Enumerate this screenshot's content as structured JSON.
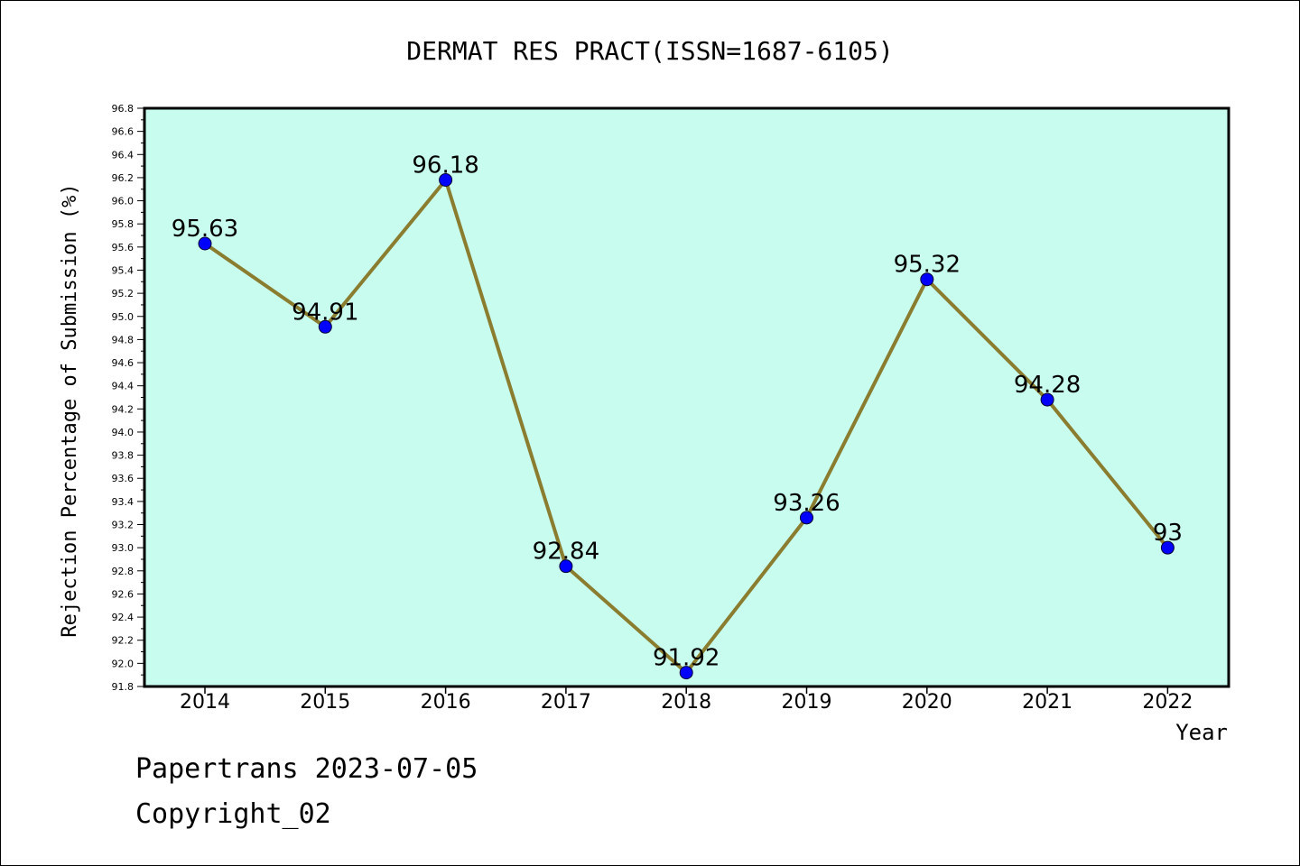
{
  "chart_data": {
    "type": "line",
    "title": "DERMAT RES PRACT(ISSN=1687-6105)",
    "xlabel": "Year",
    "ylabel": "Rejection Percentage of Submission (%)",
    "categories": [
      "2014",
      "2015",
      "2016",
      "2017",
      "2018",
      "2019",
      "2020",
      "2021",
      "2022"
    ],
    "values": [
      95.63,
      94.91,
      96.18,
      92.84,
      91.92,
      93.26,
      95.32,
      94.28,
      93
    ],
    "data_labels": [
      "95.63",
      "94.91",
      "96.18",
      "92.84",
      "91.92",
      "93.26",
      "95.32",
      "94.28",
      "93"
    ],
    "ylim": [
      91.8,
      96.8
    ],
    "yticks": [
      "91.8",
      "92.0",
      "92.2",
      "92.4",
      "92.6",
      "92.8",
      "93.0",
      "93.2",
      "93.4",
      "93.6",
      "93.8",
      "94.0",
      "94.2",
      "94.4",
      "94.6",
      "94.8",
      "95.0",
      "95.2",
      "95.4",
      "95.6",
      "95.8",
      "96.0",
      "96.2",
      "96.4",
      "96.6",
      "96.8"
    ],
    "plot_background": "#c8fcee",
    "line_color": "#8b7d2f",
    "marker_color": "#0000ff",
    "grid": false
  },
  "footer": {
    "line1": "Papertrans 2023-07-05",
    "line2": "Copyright_02"
  }
}
